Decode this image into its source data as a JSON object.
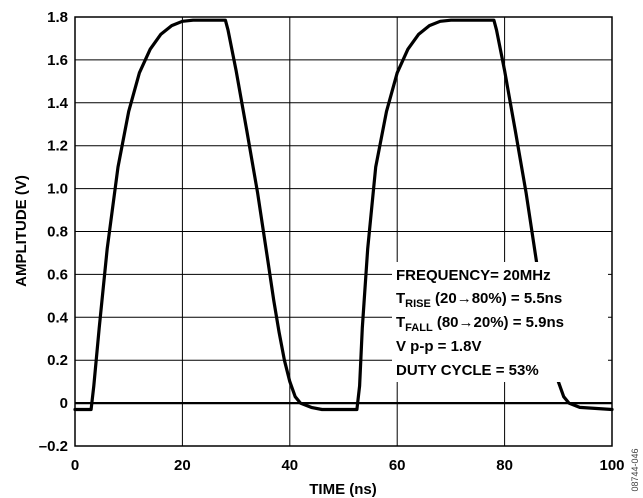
{
  "chart_data": {
    "type": "line",
    "title": "",
    "xlabel": "TIME (ns)",
    "ylabel": "AMPLITUDE (V)",
    "xlim": [
      0,
      100
    ],
    "ylim": [
      -0.2,
      1.8
    ],
    "xticks": [
      0,
      20,
      40,
      60,
      80,
      100
    ],
    "xtick_labels": [
      "0",
      "20",
      "40",
      "60",
      "80",
      "100"
    ],
    "yticks": [
      -0.2,
      0,
      0.2,
      0.4,
      0.6,
      0.8,
      1.0,
      1.2,
      1.4,
      1.6,
      1.8
    ],
    "ytick_labels": [
      "–0.2",
      "0",
      "0.2",
      "0.4",
      "0.6",
      "0.8",
      "1.0",
      "1.2",
      "1.4",
      "1.6",
      "1.8"
    ],
    "grid": true,
    "series": [
      {
        "name": "",
        "x": [
          0,
          3,
          3.5,
          4.5,
          6,
          8,
          10,
          12,
          14,
          16,
          18,
          20,
          22,
          24,
          28,
          28.5,
          30,
          32,
          34,
          36,
          37,
          38,
          39,
          40,
          41,
          42,
          44,
          46,
          50,
          52.5,
          53,
          53.5,
          54.5,
          56,
          58,
          60,
          62,
          64,
          66,
          68,
          70,
          72,
          74,
          78,
          78.5,
          80,
          82,
          84,
          86,
          87,
          88,
          89,
          90,
          91,
          92,
          94,
          100
        ],
        "y": [
          -0.03,
          -0.03,
          0.08,
          0.35,
          0.72,
          1.1,
          1.36,
          1.54,
          1.65,
          1.72,
          1.76,
          1.78,
          1.785,
          1.785,
          1.785,
          1.74,
          1.55,
          1.27,
          0.98,
          0.65,
          0.48,
          0.33,
          0.2,
          0.1,
          0.03,
          0.0,
          -0.02,
          -0.03,
          -0.03,
          -0.03,
          0.08,
          0.35,
          0.72,
          1.1,
          1.36,
          1.54,
          1.65,
          1.72,
          1.76,
          1.78,
          1.785,
          1.785,
          1.785,
          1.785,
          1.74,
          1.55,
          1.27,
          0.98,
          0.65,
          0.48,
          0.33,
          0.2,
          0.1,
          0.03,
          0.0,
          -0.02,
          -0.03
        ]
      }
    ],
    "annotations": [
      {
        "text": "FREQUENCY= 20MHz"
      },
      {
        "text_main": "T",
        "text_sub": "RISE",
        "text_rest": " (20→80%) = 5.5ns"
      },
      {
        "text_main": "T",
        "text_sub": "FALL",
        "text_rest": " (80→20%) = 5.9ns"
      },
      {
        "text": "V p-p = 1.8V"
      },
      {
        "text": "DUTY CYCLE = 53%"
      }
    ],
    "figure_id": "08744-046"
  }
}
